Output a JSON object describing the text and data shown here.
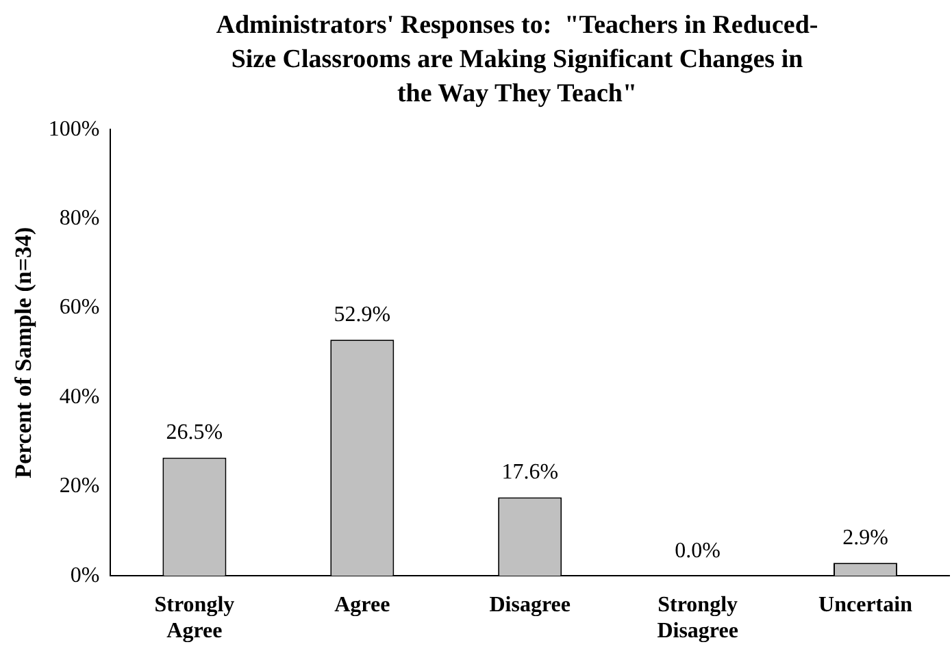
{
  "chart_data": {
    "type": "bar",
    "title": "Administrators' Responses to:  \"Teachers in Reduced-Size Classrooms are Making Significant Changes in the Way They Teach\"",
    "ylabel": "Percent of Sample (n=34)",
    "categories": [
      "Strongly Agree",
      "Agree",
      "Disagree",
      "Strongly Disagree",
      "Uncertain"
    ],
    "values": [
      26.5,
      52.9,
      17.6,
      0.0,
      2.9
    ],
    "value_labels": [
      "26.5%",
      "52.9%",
      "17.6%",
      "0.0%",
      "2.9%"
    ],
    "color": "#c0c0c0",
    "ylim": [
      0,
      100
    ],
    "yticks": [
      {
        "value": 0,
        "label": "0%"
      },
      {
        "value": 20,
        "label": "20%"
      },
      {
        "value": 40,
        "label": "40%"
      },
      {
        "value": 60,
        "label": "60%"
      },
      {
        "value": 80,
        "label": "80%"
      },
      {
        "value": 100,
        "label": "100%"
      }
    ],
    "grid": false,
    "legend": false
  }
}
